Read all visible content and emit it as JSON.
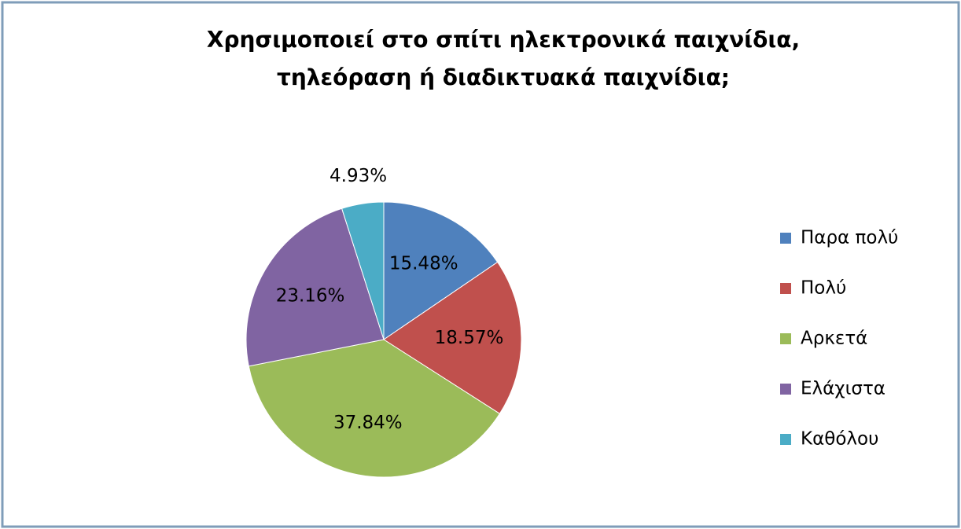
{
  "chart_data": {
    "type": "pie",
    "title": [
      "Χρησιμοποιεί στο σπίτι ηλεκτρονικά παιχνίδια,",
      "τηλεόραση ή διαδικτυακά παιχνίδια;"
    ],
    "categories": [
      "Παρα πολύ",
      "Πολύ",
      "Αρκετά",
      "Ελάχιστα",
      "Καθόλου"
    ],
    "values": [
      15.48,
      18.57,
      37.84,
      23.16,
      4.93
    ],
    "value_labels": [
      "15.48%",
      "18.57%",
      "37.84%",
      "23.16%",
      "4.93%"
    ],
    "colors": [
      "#4f81bd",
      "#c0504d",
      "#9bbb59",
      "#8064a2",
      "#4bacc6"
    ],
    "legend": "right"
  }
}
